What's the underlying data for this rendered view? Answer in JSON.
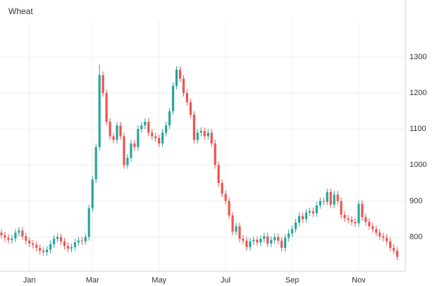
{
  "chart_data": {
    "type": "candlestick",
    "title": "Wheat",
    "categories": [
      null,
      null,
      null,
      null,
      null,
      null,
      null,
      null,
      "Jan",
      null,
      null,
      null,
      null,
      null,
      null,
      null,
      null,
      null,
      null,
      null,
      null,
      null,
      null,
      null,
      null,
      null,
      "Mar",
      null,
      null,
      null,
      null,
      null,
      null,
      null,
      null,
      null,
      null,
      null,
      null,
      null,
      null,
      null,
      null,
      null,
      null,
      "May",
      null,
      null,
      null,
      null,
      null,
      null,
      null,
      null,
      null,
      null,
      null,
      null,
      null,
      null,
      null,
      null,
      null,
      null,
      "Jul",
      null,
      null,
      null,
      null,
      null,
      null,
      null,
      null,
      null,
      null,
      null,
      null,
      null,
      null,
      null,
      null,
      null,
      null,
      "Sep",
      null,
      null,
      null,
      null,
      null,
      null,
      null,
      null,
      null,
      null,
      null,
      null,
      null,
      null,
      null,
      null,
      null,
      null,
      "Nov",
      null,
      null,
      null,
      null,
      null,
      null,
      null,
      null,
      null,
      null,
      null
    ],
    "open": [
      812,
      805,
      798,
      792,
      796,
      812,
      818,
      802,
      790,
      782,
      778,
      770,
      762,
      758,
      765,
      780,
      795,
      800,
      788,
      775,
      768,
      772,
      785,
      790,
      788,
      800,
      880,
      960,
      1050,
      1250,
      1200,
      1120,
      1080,
      1070,
      1110,
      1080,
      1000,
      1020,
      1060,
      1050,
      1100,
      1110,
      1120,
      1090,
      1080,
      1075,
      1060,
      1090,
      1110,
      1150,
      1220,
      1265,
      1240,
      1200,
      1175,
      1140,
      1070,
      1090,
      1095,
      1080,
      1090,
      1060,
      1000,
      950,
      920,
      900,
      860,
      815,
      830,
      795,
      790,
      772,
      788,
      792,
      785,
      795,
      802,
      782,
      792,
      800,
      790,
      770,
      798,
      810,
      822,
      840,
      858,
      850,
      868,
      872,
      866,
      888,
      900,
      898,
      925,
      890,
      918,
      900,
      862,
      852,
      848,
      842,
      838,
      892,
      855,
      842,
      830,
      822,
      812,
      802,
      798,
      788,
      770,
      762
    ],
    "high": [
      822,
      815,
      808,
      806,
      822,
      828,
      828,
      812,
      800,
      792,
      788,
      780,
      772,
      775,
      790,
      805,
      810,
      810,
      798,
      785,
      782,
      795,
      800,
      800,
      810,
      890,
      970,
      1060,
      1280,
      1260,
      1210,
      1130,
      1090,
      1120,
      1120,
      1090,
      1030,
      1070,
      1070,
      1110,
      1120,
      1130,
      1130,
      1100,
      1090,
      1085,
      1100,
      1120,
      1160,
      1230,
      1275,
      1275,
      1250,
      1210,
      1185,
      1150,
      1100,
      1105,
      1105,
      1100,
      1100,
      1070,
      1010,
      960,
      930,
      910,
      870,
      840,
      840,
      805,
      800,
      798,
      802,
      802,
      805,
      812,
      812,
      802,
      810,
      810,
      800,
      808,
      820,
      832,
      850,
      868,
      868,
      878,
      882,
      882,
      898,
      910,
      910,
      935,
      935,
      928,
      928,
      910,
      872,
      862,
      858,
      852,
      902,
      902,
      865,
      852,
      840,
      832,
      822,
      812,
      808,
      798,
      780,
      772
    ],
    "low": [
      795,
      788,
      782,
      782,
      786,
      802,
      792,
      780,
      772,
      768,
      760,
      752,
      748,
      748,
      755,
      770,
      785,
      778,
      765,
      758,
      758,
      762,
      775,
      778,
      778,
      790,
      870,
      950,
      1040,
      1190,
      1110,
      1070,
      1060,
      1060,
      1070,
      990,
      990,
      1010,
      1040,
      1040,
      1090,
      1100,
      1080,
      1070,
      1065,
      1050,
      1050,
      1080,
      1100,
      1140,
      1210,
      1230,
      1190,
      1165,
      1130,
      1060,
      1060,
      1080,
      1070,
      1070,
      1050,
      990,
      940,
      910,
      890,
      850,
      805,
      805,
      785,
      780,
      762,
      762,
      778,
      775,
      775,
      785,
      772,
      772,
      782,
      780,
      760,
      760,
      788,
      800,
      812,
      830,
      840,
      840,
      858,
      856,
      856,
      878,
      888,
      888,
      880,
      880,
      890,
      852,
      842,
      838,
      832,
      828,
      828,
      845,
      832,
      820,
      812,
      802,
      792,
      788,
      778,
      760,
      752,
      735
    ],
    "close": [
      805,
      798,
      792,
      796,
      812,
      818,
      802,
      790,
      782,
      778,
      770,
      762,
      758,
      765,
      780,
      795,
      800,
      788,
      775,
      768,
      772,
      785,
      790,
      788,
      800,
      880,
      960,
      1050,
      1250,
      1200,
      1120,
      1080,
      1070,
      1110,
      1080,
      1000,
      1020,
      1060,
      1050,
      1100,
      1110,
      1120,
      1090,
      1080,
      1075,
      1060,
      1090,
      1110,
      1150,
      1220,
      1265,
      1240,
      1200,
      1175,
      1140,
      1070,
      1090,
      1095,
      1080,
      1090,
      1060,
      1000,
      950,
      920,
      900,
      860,
      815,
      830,
      795,
      790,
      772,
      788,
      792,
      785,
      795,
      802,
      782,
      792,
      800,
      790,
      770,
      798,
      810,
      822,
      840,
      858,
      850,
      868,
      872,
      866,
      888,
      900,
      898,
      925,
      890,
      918,
      900,
      862,
      852,
      848,
      842,
      838,
      892,
      855,
      842,
      830,
      822,
      812,
      802,
      798,
      788,
      770,
      762,
      745
    ],
    "up_color": "#26a69a",
    "down_color": "#ef5350",
    "ylim": [
      705,
      1400
    ],
    "yticks": [
      800,
      900,
      1000,
      1100,
      1200,
      1300
    ],
    "grid": true
  }
}
